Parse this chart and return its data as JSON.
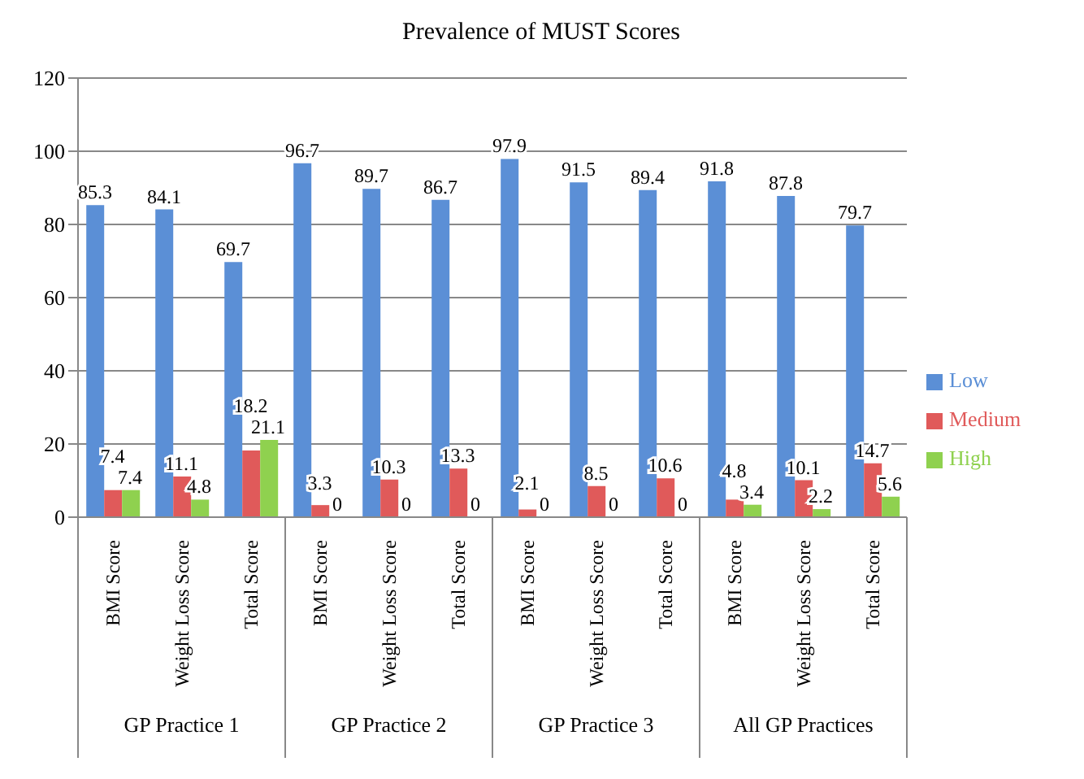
{
  "chart_data": {
    "type": "bar",
    "title": "Prevalence of MUST Scores",
    "categories": [
      "BMI Score",
      "Weight Loss Score",
      "Total Score",
      "BMI Score",
      "Weight Loss Score",
      "Total Score",
      "BMI Score",
      "Weight Loss Score",
      "Total Score",
      "BMI Score",
      "Weight Loss Score",
      "Total Score"
    ],
    "series": [
      {
        "name": "Low",
        "color": "#5b8fd6",
        "values": [
          85.3,
          84.1,
          69.7,
          96.7,
          89.7,
          86.7,
          97.9,
          91.5,
          89.4,
          91.8,
          87.8,
          79.7
        ]
      },
      {
        "name": "Medium",
        "color": "#e05a5a",
        "values": [
          7.4,
          11.1,
          18.2,
          3.3,
          10.3,
          13.3,
          2.1,
          8.5,
          10.6,
          4.8,
          10.1,
          14.7
        ]
      },
      {
        "name": "High",
        "color": "#8fd14f",
        "values": [
          7.4,
          4.8,
          21.1,
          0,
          0,
          0,
          0,
          0,
          0,
          3.4,
          2.2,
          5.6
        ]
      }
    ],
    "annotations": [
      "GP Practice 1",
      "GP Practice 2",
      "GP Practice 3",
      "All GP Practices"
    ],
    "ylim": [
      0,
      120
    ],
    "yticks": [
      0,
      20,
      40,
      60,
      80,
      100,
      120
    ],
    "grid": "y",
    "legend": "right",
    "data_labels": true
  }
}
